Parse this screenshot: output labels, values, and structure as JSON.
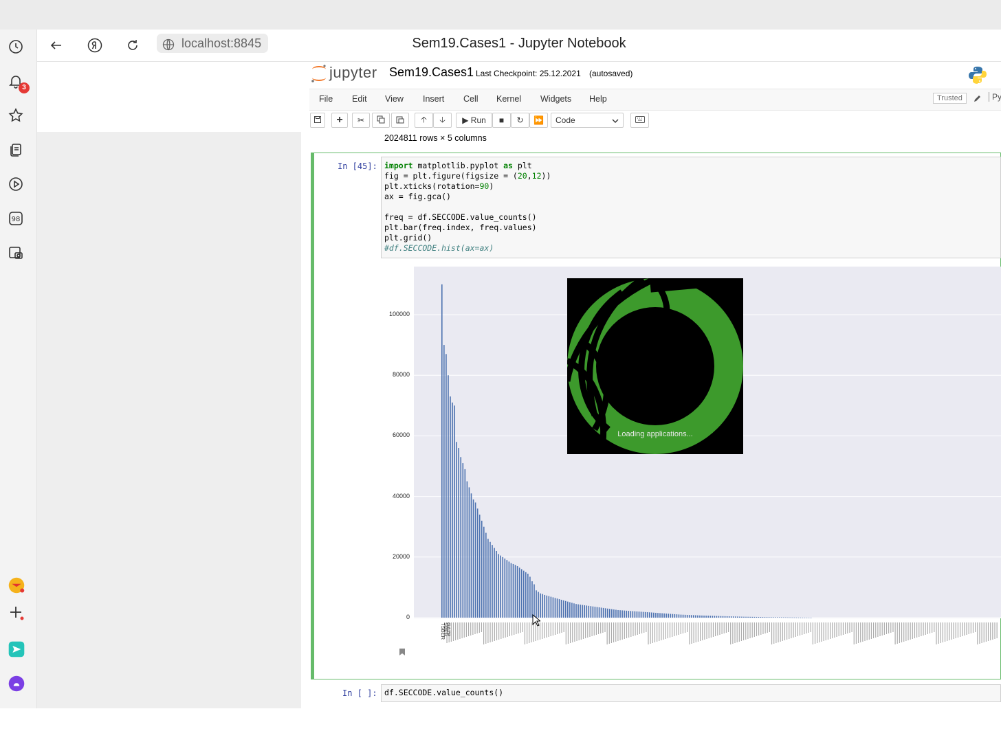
{
  "browser": {
    "url": "localhost:8845",
    "window_title": "Sem19.Cases1 - Jupyter Notebook",
    "notification_count": "3"
  },
  "jupyter": {
    "logo_text": "jupyter",
    "notebook_name": "Sem19.Cases1",
    "checkpoint": "Last Checkpoint: 25.12.2021",
    "autosaved": "(autosaved)",
    "menu": [
      "File",
      "Edit",
      "View",
      "Insert",
      "Cell",
      "Kernel",
      "Widgets",
      "Help"
    ],
    "trusted": "Trusted",
    "kernel_fragment": "Py",
    "toolbar": {
      "run_label": "Run",
      "cell_type": "Code"
    }
  },
  "output_prev": {
    "shape_text": "2024811 rows × 5 columns"
  },
  "cell1": {
    "prompt": "In [45]:",
    "code": [
      "import matplotlib.pyplot as plt",
      "fig = plt.figure(figsize = (20,12))",
      "plt.xticks(rotation=90)",
      "ax = fig.gca()",
      "",
      "freq = df.SECCODE.value_counts()",
      "plt.bar(freq.index, freq.values)",
      "plt.grid()",
      "#df.SECCODE.hist(ax=ax)"
    ]
  },
  "cell2": {
    "prompt": "In [ ]:",
    "code": "df.SECCODE.value_counts()"
  },
  "splash": {
    "text": "Loading applications..."
  },
  "chart_data": {
    "type": "bar",
    "title": "",
    "xlabel": "",
    "ylabel": "",
    "ylim": [
      0,
      110000
    ],
    "grid": true,
    "yticks": [
      "0",
      "20000",
      "40000",
      "60000",
      "80000",
      "100000"
    ],
    "ytick_values": [
      0,
      20000,
      40000,
      60000,
      80000,
      100000
    ],
    "first_categories": [
      "TSBER",
      "SBER",
      "GAZP"
    ],
    "values": [
      110000,
      90000,
      87000,
      80000,
      73000,
      71000,
      70000,
      58000,
      56000,
      53000,
      51000,
      49000,
      45000,
      43000,
      41000,
      39000,
      38000,
      36000,
      34000,
      32000,
      30000,
      28000,
      26000,
      25000,
      24000,
      23000,
      22000,
      21000,
      20500,
      20000,
      19500,
      19000,
      18500,
      18000,
      17700,
      17400,
      17000,
      16500,
      16000,
      15500,
      15000,
      14500,
      13500,
      12000,
      11000,
      9000,
      8500,
      8000,
      7800,
      7500,
      7300,
      7100,
      6900,
      6700,
      6500,
      6300,
      6100,
      5900,
      5700,
      5500,
      5300,
      5100,
      4900,
      4700,
      4500,
      4400,
      4300,
      4200,
      4100,
      4000,
      3900,
      3800,
      3700,
      3600,
      3500,
      3400,
      3300,
      3200,
      3100,
      3000,
      2900,
      2800,
      2700,
      2600,
      2500,
      2450,
      2400,
      2350,
      2300,
      2250,
      2200,
      2150,
      2100,
      2050,
      2000,
      1950,
      1900,
      1850,
      1800,
      1750,
      1700,
      1650,
      1600,
      1550,
      1500,
      1450,
      1400,
      1350,
      1300,
      1250,
      1200,
      1150,
      1100,
      1050,
      1000,
      970,
      940,
      910,
      880,
      850,
      820,
      790,
      760,
      730,
      700,
      680,
      660,
      640,
      620,
      600,
      580,
      560,
      540,
      520,
      500,
      480,
      460,
      440,
      420,
      400,
      380,
      360,
      340,
      320,
      300,
      290,
      280,
      270,
      260,
      250,
      240,
      230,
      220,
      210,
      200,
      190,
      180,
      170,
      160,
      150,
      140,
      130,
      120,
      110,
      100,
      90,
      80,
      70,
      60,
      50,
      40,
      35,
      30,
      25,
      20,
      15,
      10
    ]
  }
}
